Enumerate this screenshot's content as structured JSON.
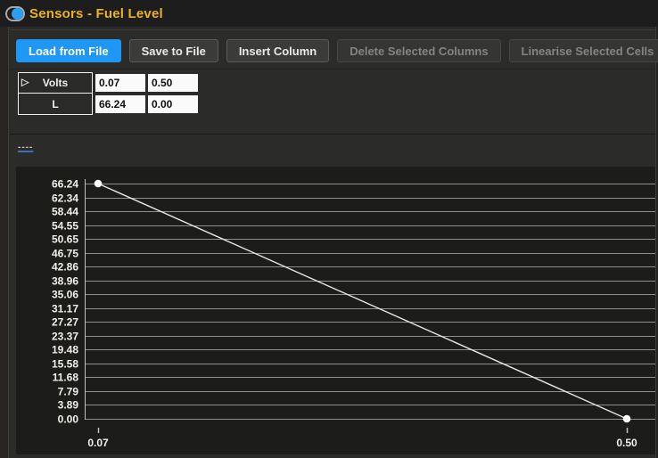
{
  "titlebar": {
    "title": "Sensors - Fuel Level",
    "icon": "toggle-circle-icon"
  },
  "toolbar": {
    "buttons": [
      {
        "label": "Load from File",
        "state": "primary"
      },
      {
        "label": "Save to File",
        "state": "normal"
      },
      {
        "label": "Insert Column",
        "state": "normal"
      },
      {
        "label": "Delete Selected Columns",
        "state": "disabled"
      },
      {
        "label": "Linearise Selected Cells",
        "state": "disabled"
      }
    ]
  },
  "table": {
    "expander_glyph": "▷",
    "rows": [
      {
        "header": "Volts",
        "cells": [
          "0.07",
          "0.50"
        ]
      },
      {
        "header": "L",
        "cells": [
          "66.24",
          "0.00"
        ]
      }
    ]
  },
  "separator_text": "----",
  "colors": {
    "title_text": "#eab41e",
    "primary_button": "#1f97f4",
    "selection_blue": "#2a9df4"
  },
  "chart_data": {
    "type": "line",
    "title": "",
    "x": [
      0.07,
      0.5
    ],
    "y": [
      66.24,
      0.0
    ],
    "x_tick_labels": [
      "0.07",
      "0.50"
    ],
    "y_tick_labels": [
      "66.24",
      "62.34",
      "58.44",
      "54.55",
      "50.65",
      "46.75",
      "42.86",
      "38.96",
      "35.06",
      "31.17",
      "27.27",
      "23.37",
      "19.48",
      "15.58",
      "11.68",
      "7.79",
      "3.89",
      "0.00"
    ],
    "xlim": [
      0.07,
      0.5
    ],
    "ylim": [
      0,
      66.24
    ],
    "grid": true,
    "legend": false,
    "colors": {
      "grid": "#8f8f8f",
      "axis": "#c0c0c0",
      "line": "#e6e6e6",
      "marker": "#ffffff",
      "tick_label": "#f2efe9"
    }
  }
}
